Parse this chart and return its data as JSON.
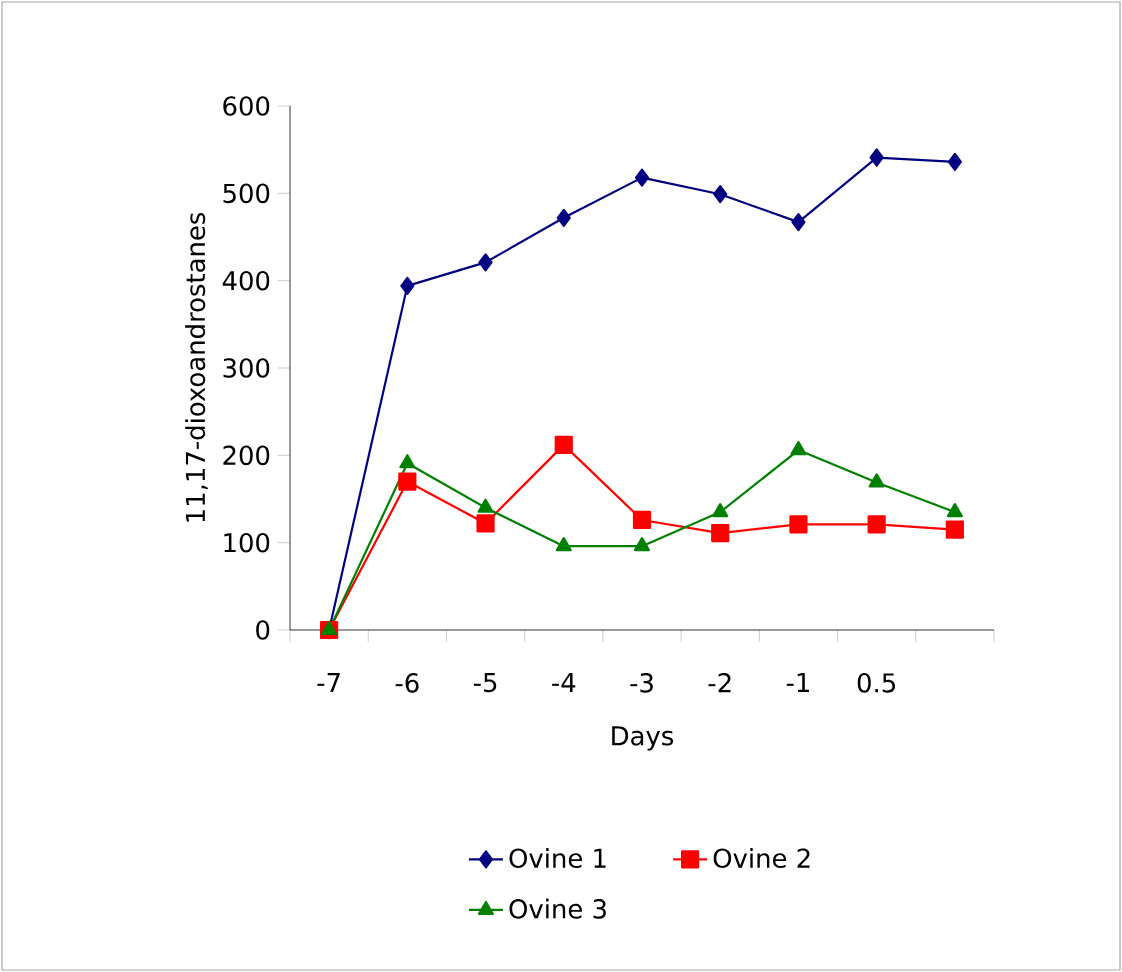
{
  "chart_data": {
    "type": "line",
    "xlabel": "Days",
    "ylabel": "11,17-dioxoandrostanes",
    "categories": [
      "-7",
      "-6",
      "-5",
      "-4",
      "-3",
      "-2",
      "-1",
      "0.5",
      null
    ],
    "series": [
      {
        "name": "Ovine 1",
        "color": "#000080",
        "marker": "diamond",
        "values": [
          0,
          394,
          421,
          472,
          518,
          499,
          467,
          541,
          536
        ]
      },
      {
        "name": "Ovine 2",
        "color": "#ff0000",
        "marker": "square",
        "values": [
          0,
          170,
          122,
          212,
          126,
          111,
          121,
          121,
          115
        ]
      },
      {
        "name": "Ovine 3",
        "color": "#008000",
        "marker": "triangle",
        "values": [
          0,
          191,
          140,
          96,
          96,
          135,
          206,
          169,
          135
        ]
      }
    ],
    "ylim": [
      0,
      600
    ],
    "yticks": [
      0,
      100,
      200,
      300,
      400,
      500,
      600
    ],
    "grid": false,
    "legend": "bottom",
    "line_style": "solid"
  }
}
